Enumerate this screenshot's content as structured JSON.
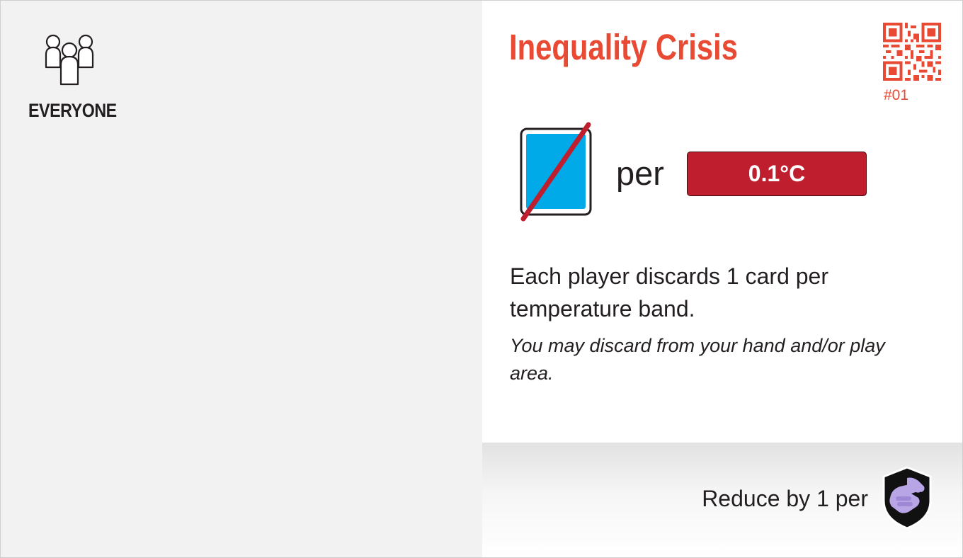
{
  "card": {
    "target": {
      "icon": "people-group-icon",
      "label": "EVERYONE"
    },
    "title": "Inequality Crisis",
    "number": "#01",
    "cost": {
      "icon": "discard-card-icon",
      "per_label": "per",
      "badge": "0.1°C"
    },
    "effect_text": "Each player discards 1 card per temperature band.",
    "flavor_text": "You may discard from your hand and/or play area.",
    "reduction": {
      "label": "Reduce by 1 per",
      "icon": "cooperation-shield-icon"
    },
    "colors": {
      "title": "#e84a34",
      "badge": "#be1e2d",
      "card_blue": "#00a9e8",
      "shield_fill": "#b8a5e6",
      "left_panel": "#f2f2f2"
    }
  }
}
